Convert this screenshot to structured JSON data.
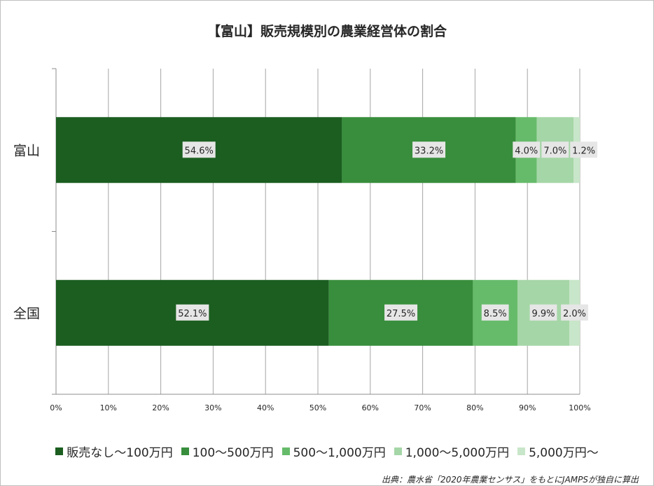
{
  "chart_data": {
    "type": "bar",
    "orientation": "horizontal",
    "stacked": "percent",
    "title": "【富山】販売規模別の農業経営体の割合",
    "categories": [
      "富山",
      "全国"
    ],
    "series": [
      {
        "name": "販売なし〜100万円",
        "values": [
          54.6,
          52.1
        ],
        "labels": [
          "54.6%",
          "52.1%"
        ],
        "color": "#1b5e20"
      },
      {
        "name": "100〜500万円",
        "values": [
          33.2,
          27.5
        ],
        "labels": [
          "33.2%",
          "27.5%"
        ],
        "color": "#388e3c"
      },
      {
        "name": "500〜1,000万円",
        "values": [
          4.0,
          8.5
        ],
        "labels": [
          "4.0%",
          "8.5%"
        ],
        "color": "#66bb6a"
      },
      {
        "name": "1,000〜5,000万円",
        "values": [
          7.0,
          9.9
        ],
        "labels": [
          "7.0%",
          "9.9%"
        ],
        "color": "#a5d6a7"
      },
      {
        "name": "5,000万円〜",
        "values": [
          1.2,
          2.0
        ],
        "labels": [
          "1.2%",
          "2.0%"
        ],
        "color": "#c8e6c9"
      }
    ],
    "xlim": [
      0,
      100
    ],
    "xticks": [
      "0%",
      "10%",
      "20%",
      "30%",
      "40%",
      "50%",
      "60%",
      "70%",
      "80%",
      "90%",
      "100%"
    ],
    "grid": true,
    "legend_position": "bottom"
  },
  "source_note": "出典：農水省「2020年農業センサス」をもとにJAMPSが独自に算出"
}
